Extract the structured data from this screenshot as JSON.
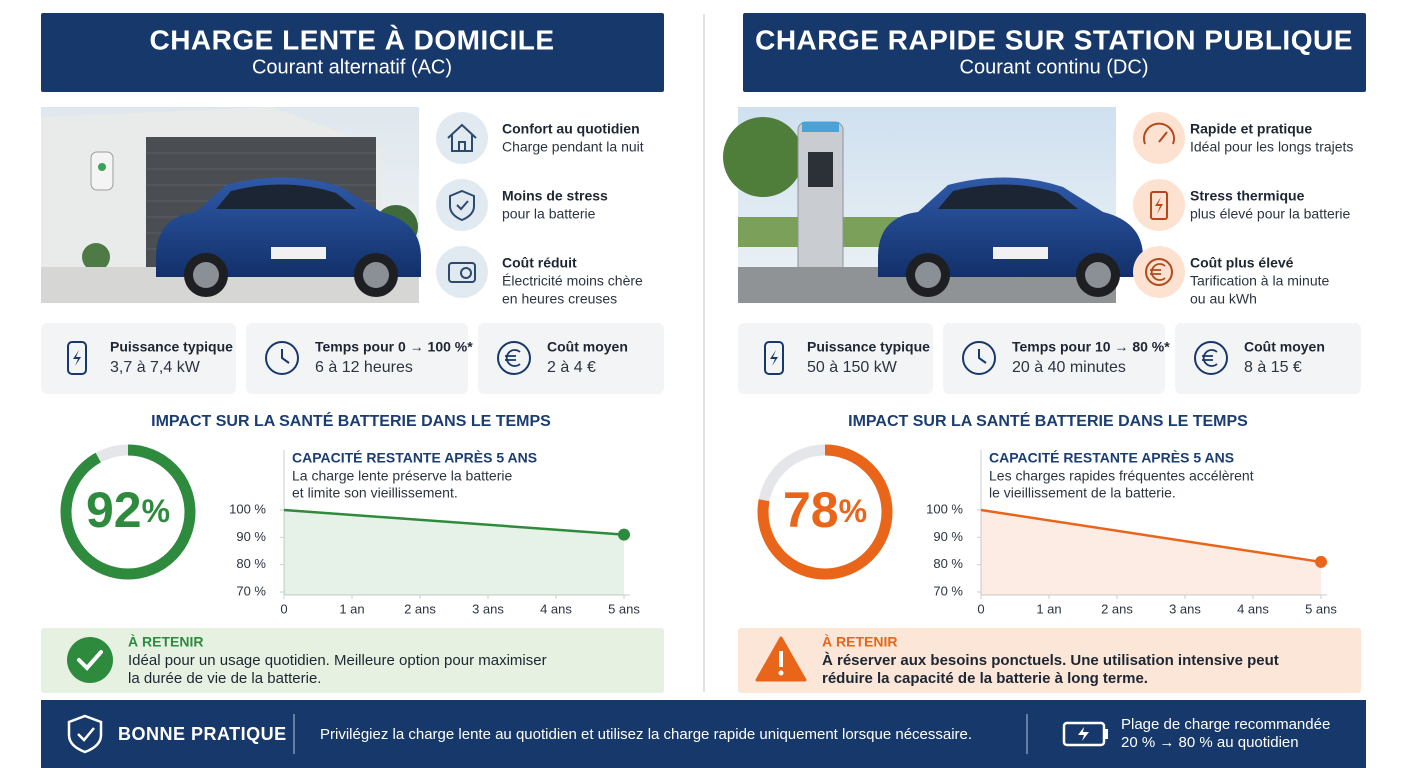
{
  "panels": [
    {
      "title": "CHARGE LENTE À DOMICILE",
      "subtitle": "Courant alternatif (AC)",
      "features": [
        {
          "title": "Confort au quotidien",
          "lines": [
            "Charge pendant la nuit"
          ]
        },
        {
          "title": "Moins de stress",
          "lines": [
            "pour la batterie"
          ]
        },
        {
          "title": "Coût réduit",
          "lines": [
            "Électricité moins chère",
            "en heures creuses"
          ]
        }
      ],
      "stats": [
        {
          "label": "Puissance typique",
          "value": "3,7 à 7,4 kW"
        },
        {
          "label": "Temps pour 0 → 100 %*",
          "value": "6 à 12 heures"
        },
        {
          "label": "Coût moyen",
          "value": "2 à 4 €"
        }
      ],
      "impact_title": "IMPACT SUR LA SANTÉ BATTERIE DANS LE TEMPS",
      "gauge_value": 92,
      "gauge_unit": "%",
      "color": "#2e8b3e",
      "retenir_title": "À RETENIR",
      "retenir_lines": [
        "Idéal pour un usage quotidien. Meilleure option pour maximiser",
        "la durée de vie de la batterie."
      ]
    },
    {
      "title": "CHARGE RAPIDE SUR STATION PUBLIQUE",
      "subtitle": "Courant continu (DC)",
      "features": [
        {
          "title": "Rapide et pratique",
          "lines": [
            "Idéal pour les longs trajets"
          ]
        },
        {
          "title": "Stress thermique",
          "lines": [
            "plus élevé pour la batterie"
          ]
        },
        {
          "title": "Coût plus élevé",
          "lines": [
            "Tarification à la minute",
            "ou au kWh"
          ]
        }
      ],
      "stats": [
        {
          "label": "Puissance typique",
          "value": "50 à 150 kW"
        },
        {
          "label": "Temps pour 10 → 80 %*",
          "value": "20 à 40 minutes"
        },
        {
          "label": "Coût moyen",
          "value": "8 à 15 €"
        }
      ],
      "impact_title": "IMPACT SUR LA SANTÉ BATTERIE DANS LE TEMPS",
      "gauge_value": 78,
      "gauge_unit": "%",
      "color": "#e8651a",
      "retenir_title": "À RETENIR",
      "retenir_lines": [
        "À réserver aux besoins ponctuels. Une utilisation intensive peut",
        "réduire la capacité de la batterie à long terme."
      ]
    }
  ],
  "chart_data": [
    {
      "type": "line",
      "title": "CAPACITÉ RESTANTE APRÈS 5 ANS",
      "lines": [
        "La charge lente préserve la batterie",
        "et limite son vieillissement."
      ],
      "x": [
        0,
        5
      ],
      "values": [
        100,
        91
      ],
      "color": "#2e8b3e",
      "xlim": [
        0,
        5
      ],
      "ylim": [
        70,
        100
      ],
      "xticks": [
        0,
        {
          "value": 1,
          "label": "1 an"
        },
        {
          "value": 2,
          "label": "2 ans"
        },
        {
          "value": 3,
          "label": "3 ans"
        },
        {
          "value": 4,
          "label": "4 ans"
        },
        {
          "value": 5,
          "label": "5 ans"
        }
      ],
      "yticks": [
        {
          "value": 100,
          "label": "100 %"
        },
        {
          "value": 90,
          "label": "90 %"
        },
        {
          "value": 80,
          "label": "80 %"
        },
        {
          "value": 70,
          "label": "70 %"
        }
      ]
    },
    {
      "type": "line",
      "title": "CAPACITÉ RESTANTE APRÈS 5 ANS",
      "lines": [
        "Les charges rapides fréquentes accélèrent",
        "le vieillissement de la batterie."
      ],
      "x": [
        0,
        5
      ],
      "values": [
        100,
        81
      ],
      "color": "#e8651a",
      "xlim": [
        0,
        5
      ],
      "ylim": [
        70,
        100
      ],
      "xticks": [
        0,
        {
          "value": 1,
          "label": "1 an"
        },
        {
          "value": 2,
          "label": "2 ans"
        },
        {
          "value": 3,
          "label": "3 ans"
        },
        {
          "value": 4,
          "label": "4 ans"
        },
        {
          "value": 5,
          "label": "5 ans"
        }
      ],
      "yticks": [
        {
          "value": 100,
          "label": "100 %"
        },
        {
          "value": 90,
          "label": "90 %"
        },
        {
          "value": 80,
          "label": "80 %"
        },
        {
          "value": 70,
          "label": "70 %"
        }
      ]
    }
  ],
  "footer": {
    "title": "BONNE PRATIQUE",
    "text": "Privilégiez la charge lente au quotidien et utilisez la charge rapide uniquement lorsque nécessaire.",
    "note_lines": [
      "Plage de charge recommandée",
      "20 % → 80 % au quotidien"
    ]
  }
}
